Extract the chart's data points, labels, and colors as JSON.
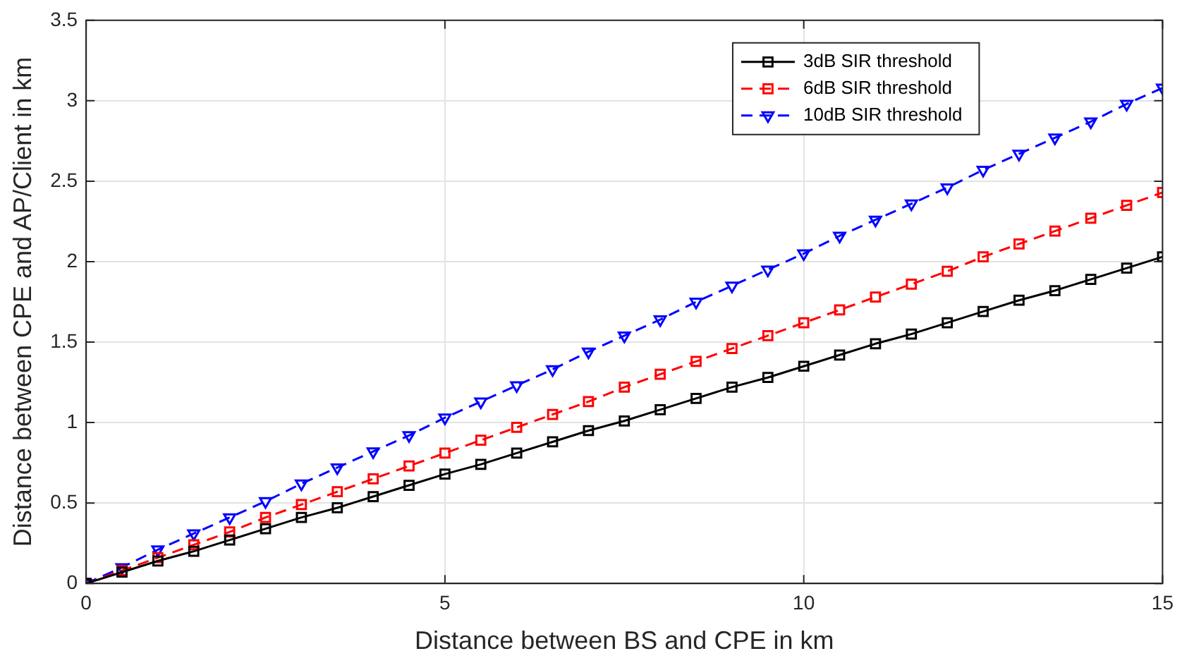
{
  "chart_data": {
    "type": "line",
    "xlabel": "Distance between BS and CPE in km",
    "ylabel": "Distance between CPE and AP/Client in km",
    "x": [
      0,
      0.5,
      1,
      1.5,
      2,
      2.5,
      3,
      3.5,
      4,
      4.5,
      5,
      5.5,
      6,
      6.5,
      7,
      7.5,
      8,
      8.5,
      9,
      9.5,
      10,
      10.5,
      11,
      11.5,
      12,
      12.5,
      13,
      13.5,
      14,
      14.5,
      15
    ],
    "series": [
      {
        "name": "3dB SIR threshold",
        "color": "#000000",
        "marker": "square",
        "line_style": "solid",
        "values": [
          0,
          0.07,
          0.14,
          0.2,
          0.27,
          0.34,
          0.41,
          0.47,
          0.54,
          0.61,
          0.68,
          0.74,
          0.81,
          0.88,
          0.95,
          1.01,
          1.08,
          1.15,
          1.22,
          1.28,
          1.35,
          1.42,
          1.49,
          1.55,
          1.62,
          1.69,
          1.76,
          1.82,
          1.89,
          1.96,
          2.03
        ]
      },
      {
        "name": "6dB SIR threshold",
        "color": "#ff0000",
        "marker": "square",
        "line_style": "dashed",
        "values": [
          0,
          0.08,
          0.16,
          0.24,
          0.32,
          0.41,
          0.49,
          0.57,
          0.65,
          0.73,
          0.81,
          0.89,
          0.97,
          1.05,
          1.13,
          1.22,
          1.3,
          1.38,
          1.46,
          1.54,
          1.62,
          1.7,
          1.78,
          1.86,
          1.94,
          2.03,
          2.11,
          2.19,
          2.27,
          2.35,
          2.43
        ]
      },
      {
        "name": "10dB SIR threshold",
        "color": "#0000ff",
        "marker": "triangle",
        "line_style": "dashed",
        "values": [
          0,
          0.1,
          0.21,
          0.31,
          0.41,
          0.51,
          0.62,
          0.72,
          0.82,
          0.92,
          1.03,
          1.13,
          1.23,
          1.33,
          1.44,
          1.54,
          1.64,
          1.75,
          1.85,
          1.95,
          2.05,
          2.16,
          2.26,
          2.36,
          2.46,
          2.57,
          2.67,
          2.77,
          2.87,
          2.98,
          3.08
        ]
      }
    ],
    "xlim": [
      0,
      15
    ],
    "xticks": [
      0,
      5,
      10,
      15
    ],
    "ylim": [
      0,
      3.5
    ],
    "yticks": [
      0,
      0.5,
      1,
      1.5,
      2,
      2.5,
      3,
      3.5
    ],
    "grid": true,
    "legend": "top right"
  }
}
